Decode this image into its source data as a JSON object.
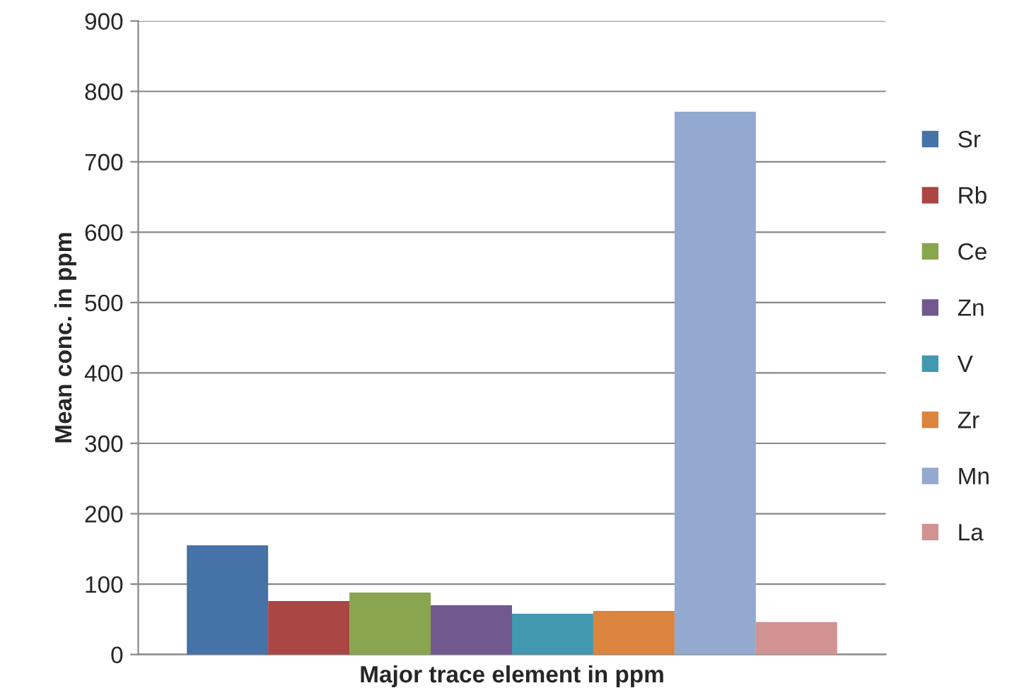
{
  "chart_data": {
    "type": "bar",
    "xlabel": "Major trace element in ppm",
    "ylabel": "Mean conc. in ppm",
    "categories": [
      null
    ],
    "series": [
      {
        "name": "Sr",
        "color": "#4572a7",
        "values": [
          155
        ]
      },
      {
        "name": "Rb",
        "color": "#aa4643",
        "values": [
          76
        ]
      },
      {
        "name": "Ce",
        "color": "#89a54e",
        "values": [
          88
        ]
      },
      {
        "name": "Zn",
        "color": "#71588f",
        "values": [
          70
        ]
      },
      {
        "name": "V",
        "color": "#4198af",
        "values": [
          58
        ]
      },
      {
        "name": "Zr",
        "color": "#db843d",
        "values": [
          62
        ]
      },
      {
        "name": "Mn",
        "color": "#93a9cf",
        "values": [
          771
        ]
      },
      {
        "name": "La",
        "color": "#d19392",
        "values": [
          46
        ]
      }
    ],
    "ylim": [
      0,
      900
    ],
    "yticks": [
      0,
      100,
      200,
      300,
      400,
      500,
      600,
      700,
      800,
      900
    ],
    "grid": "y",
    "legend": "right"
  }
}
